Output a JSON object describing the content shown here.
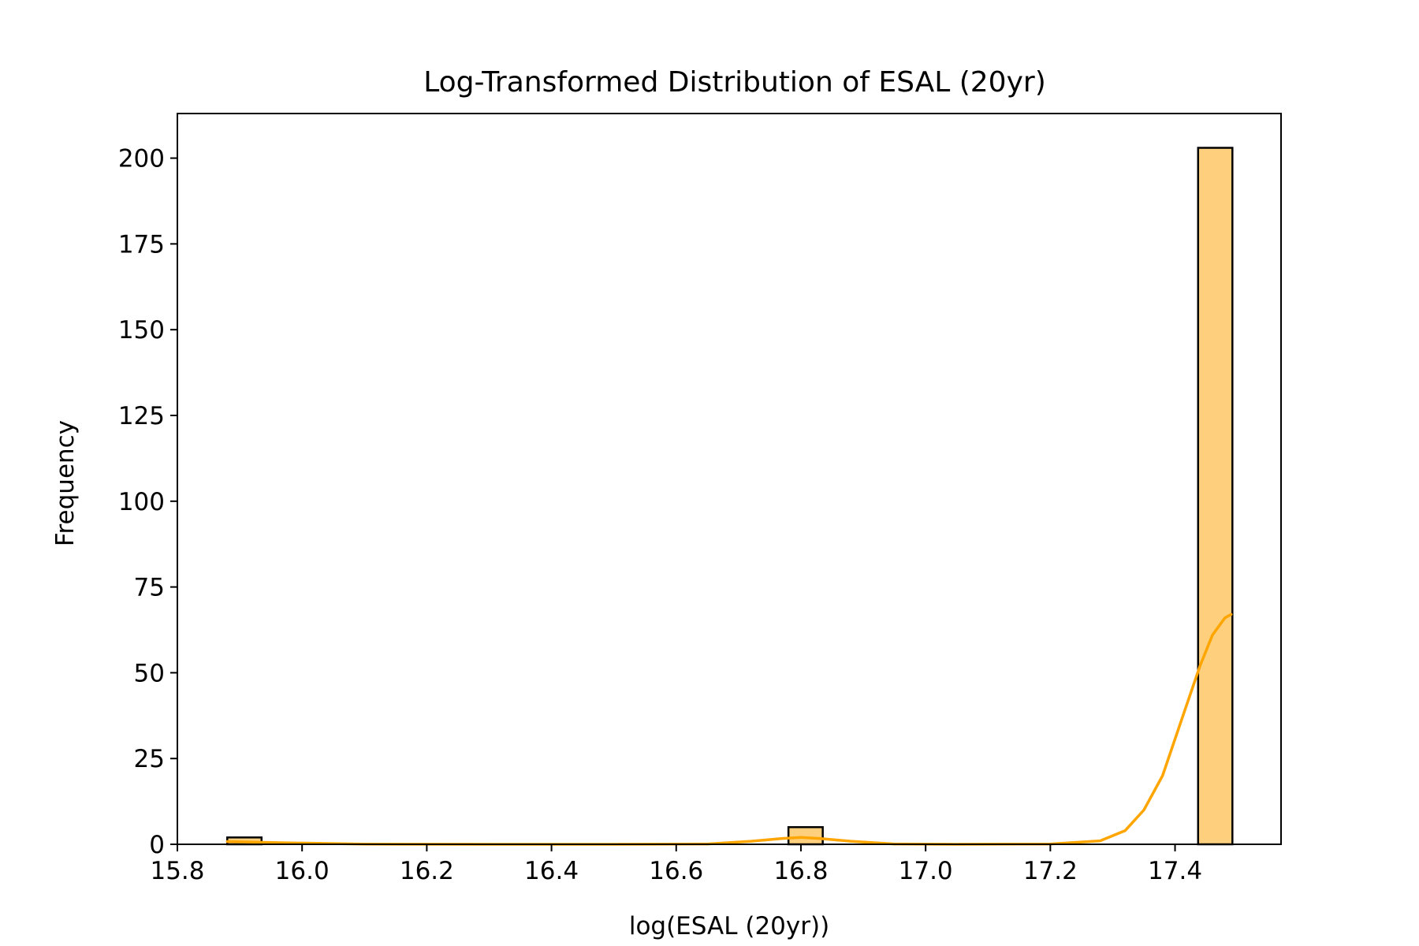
{
  "chart_data": {
    "type": "bar",
    "title": "Log-Transformed Distribution of ESAL (20yr)",
    "xlabel": "log(ESAL (20yr))",
    "ylabel": "Frequency",
    "xlim": [
      15.8,
      17.57
    ],
    "ylim": [
      0,
      213
    ],
    "x_ticks": [
      15.8,
      16.0,
      16.2,
      16.4,
      16.6,
      16.8,
      17.0,
      17.2,
      17.4
    ],
    "x_tick_labels": [
      "15.8",
      "16.0",
      "16.2",
      "16.4",
      "16.6",
      "16.8",
      "17.0",
      "17.2",
      "17.4"
    ],
    "y_ticks": [
      0,
      25,
      50,
      75,
      100,
      125,
      150,
      175,
      200
    ],
    "y_tick_labels": [
      "0",
      "25",
      "50",
      "75",
      "100",
      "125",
      "150",
      "175",
      "200"
    ],
    "bins": [
      {
        "x0": 15.88,
        "x1": 15.935,
        "count": 2
      },
      {
        "x0": 16.78,
        "x1": 16.835,
        "count": 5
      },
      {
        "x0": 17.437,
        "x1": 17.492,
        "count": 203
      }
    ],
    "bar_color": "#fed07e",
    "edge_color": "#000000",
    "grid": false,
    "kde": {
      "color": "#ffa500",
      "x": [
        15.88,
        15.95,
        16.1,
        16.3,
        16.5,
        16.65,
        16.72,
        16.77,
        16.8,
        16.83,
        16.88,
        16.95,
        17.05,
        17.2,
        17.28,
        17.32,
        17.35,
        17.38,
        17.41,
        17.44,
        17.46,
        17.48,
        17.49
      ],
      "y": [
        0.8,
        0.5,
        0.05,
        0,
        0,
        0.1,
        0.9,
        1.7,
        2.0,
        1.7,
        0.9,
        0.1,
        0,
        0.1,
        1.0,
        4.0,
        10.0,
        20.0,
        36.0,
        52.0,
        61.0,
        66.0,
        67.0
      ]
    }
  }
}
